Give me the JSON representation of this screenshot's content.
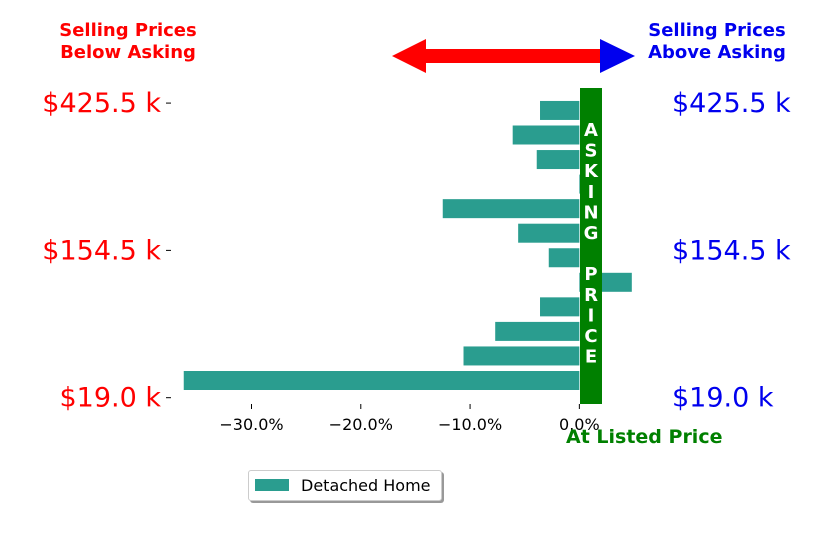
{
  "header": {
    "left_title": "Selling Prices\nBelow Asking",
    "right_title": "Selling Prices\nAbove Asking",
    "left_color": "#ff0000",
    "right_color": "#0000ee"
  },
  "colors": {
    "bar": "#2a9d8f",
    "asking_band": "#008000",
    "arrow_left": "#ff0000",
    "arrow_right": "#0000ee",
    "left_tick_text": "#ff0000",
    "right_tick_text": "#0000ee"
  },
  "asking_label": [
    "A",
    "S",
    "K",
    "I",
    "N",
    "G",
    "",
    "P",
    "R",
    "I",
    "C",
    "E"
  ],
  "listed_label": "At Listed Price",
  "legend": {
    "label": "Detached Home"
  },
  "chart_data": {
    "type": "bar",
    "orientation": "horizontal",
    "series": [
      {
        "name": "Detached Home",
        "values": [
          -36.2,
          -10.6,
          -7.7,
          -3.6,
          4.8,
          -2.8,
          -5.6,
          -12.5,
          0.4,
          -3.9,
          -6.1,
          -3.6
        ]
      }
    ],
    "xlim": [
      -37.0,
      5.0
    ],
    "xticks": [
      -30,
      -20,
      -10,
      0
    ],
    "xtick_labels": [
      "−30.0%",
      "−20.0%",
      "−10.0%",
      "0.0%"
    ],
    "y_tick_labels_left": [
      "$425.5 k",
      "$154.5 k",
      "$19.0 k"
    ],
    "y_tick_labels_right": [
      "$425.5 k",
      "$154.5 k",
      "$19.0 k"
    ],
    "y_tick_bar_index": [
      11.3,
      5.3,
      -0.7
    ]
  }
}
